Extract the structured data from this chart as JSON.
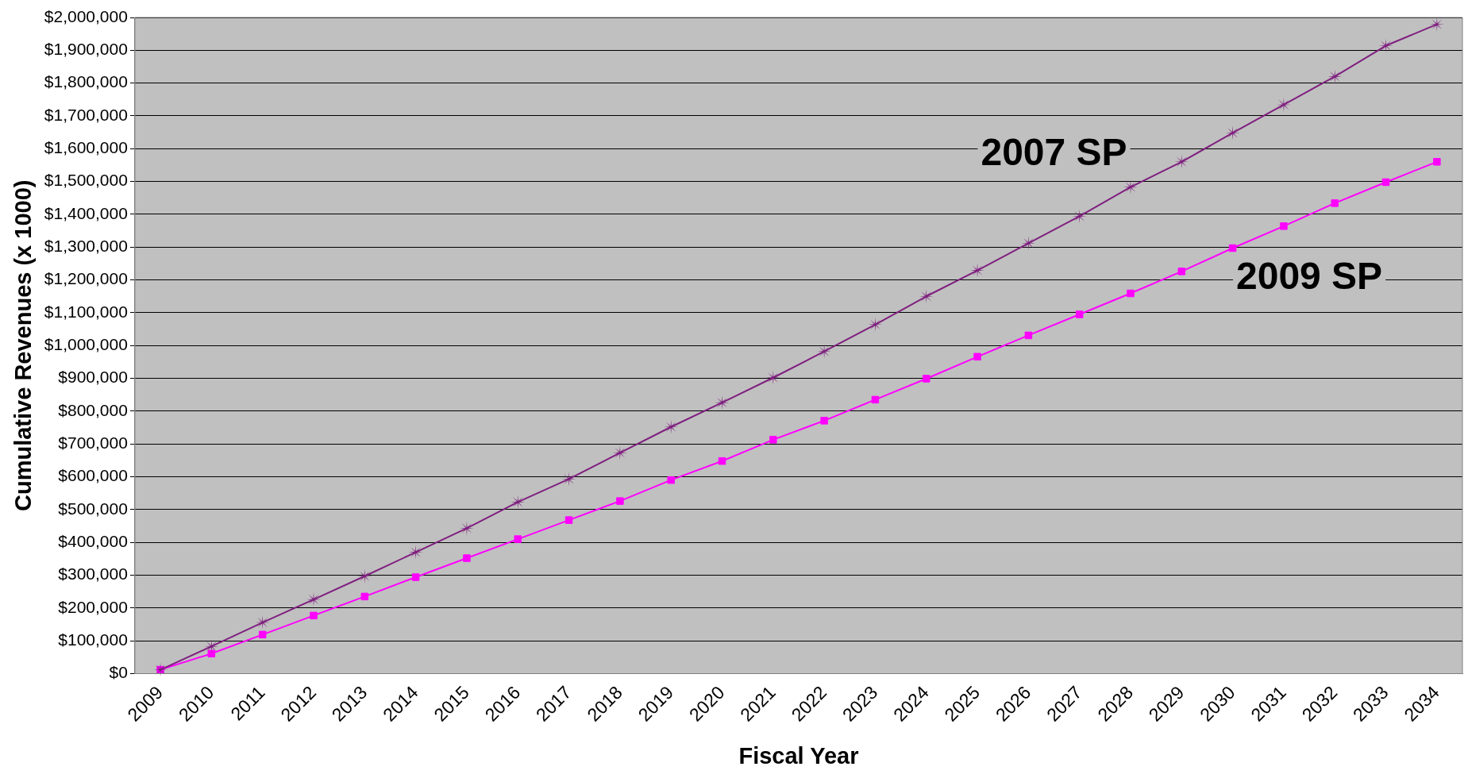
{
  "chart_data": {
    "type": "line",
    "xlabel": "Fiscal Year",
    "ylabel": "Cumulative Revenues (x 1000)",
    "categories": [
      "2009",
      "2010",
      "2011",
      "2012",
      "2013",
      "2014",
      "2015",
      "2016",
      "2017",
      "2018",
      "2019",
      "2020",
      "2021",
      "2022",
      "2023",
      "2024",
      "2025",
      "2026",
      "2027",
      "2028",
      "2029",
      "2030",
      "2031",
      "2032",
      "2033",
      "2034"
    ],
    "series": [
      {
        "name": "2007 SP",
        "color": "#7f1f7f",
        "marker": "star",
        "values": [
          12000,
          83000,
          156000,
          226000,
          297000,
          370000,
          443000,
          523000,
          593000,
          673000,
          752000,
          826000,
          902000,
          982000,
          1064000,
          1150000,
          1229000,
          1312000,
          1394000,
          1483000,
          1560000,
          1648000,
          1734000,
          1820000,
          1914000,
          1979000
        ]
      },
      {
        "name": "2009 SP",
        "color": "#ff00ff",
        "marker": "square",
        "values": [
          12000,
          61000,
          119000,
          177000,
          235000,
          294000,
          352000,
          410000,
          468000,
          526000,
          590000,
          648000,
          713000,
          771000,
          835000,
          899000,
          966000,
          1031000,
          1095000,
          1159000,
          1226000,
          1297000,
          1364000,
          1434000,
          1498000,
          1560000
        ]
      }
    ],
    "ylim": [
      0,
      2000000
    ],
    "yticks": [
      {
        "value": 0,
        "label": "$0"
      },
      {
        "value": 100000,
        "label": "$100,000"
      },
      {
        "value": 200000,
        "label": "$200,000"
      },
      {
        "value": 300000,
        "label": "$300,000"
      },
      {
        "value": 400000,
        "label": "$400,000"
      },
      {
        "value": 500000,
        "label": "$500,000"
      },
      {
        "value": 600000,
        "label": "$600,000"
      },
      {
        "value": 700000,
        "label": "$700,000"
      },
      {
        "value": 800000,
        "label": "$800,000"
      },
      {
        "value": 900000,
        "label": "$900,000"
      },
      {
        "value": 1000000,
        "label": "$1,000,000"
      },
      {
        "value": 1100000,
        "label": "$1,100,000"
      },
      {
        "value": 1200000,
        "label": "$1,200,000"
      },
      {
        "value": 1300000,
        "label": "$1,300,000"
      },
      {
        "value": 1400000,
        "label": "$1,400,000"
      },
      {
        "value": 1500000,
        "label": "$1,500,000"
      },
      {
        "value": 1600000,
        "label": "$1,600,000"
      },
      {
        "value": 1700000,
        "label": "$1,700,000"
      },
      {
        "value": 1800000,
        "label": "$1,800,000"
      },
      {
        "value": 1900000,
        "label": "$1,900,000"
      },
      {
        "value": 2000000,
        "label": "$2,000,000"
      }
    ],
    "grid": "y",
    "legend": false,
    "line_style": "solid"
  }
}
